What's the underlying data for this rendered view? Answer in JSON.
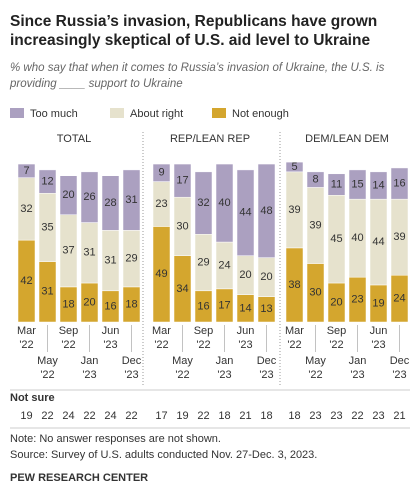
{
  "chart_data": {
    "type": "bar",
    "stacked": true,
    "title": "Since Russia’s invasion, Republicans have grown increasingly skeptical of U.S. aid level to Ukraine",
    "subtitle": "% who say that when it comes to Russia’s invasion of Ukraine, the U.S. is providing ____ support to Ukraine",
    "series": [
      {
        "name": "Too much",
        "color": "#aba0c0"
      },
      {
        "name": "About right",
        "color": "#e6e2cd"
      },
      {
        "name": "Not enough",
        "color": "#d4a62e"
      }
    ],
    "categories": [
      [
        "Mar",
        "'22"
      ],
      [
        "May",
        "'22"
      ],
      [
        "Sep",
        "'22"
      ],
      [
        "Jan",
        "'23"
      ],
      [
        "Jun",
        "'23"
      ],
      [
        "Dec",
        "'23"
      ]
    ],
    "panels": [
      {
        "title": "TOTAL",
        "title_color": "#555555",
        "values": [
          [
            7,
            12,
            20,
            26,
            28,
            31
          ],
          [
            32,
            35,
            37,
            31,
            31,
            29
          ],
          [
            42,
            31,
            18,
            20,
            16,
            18
          ]
        ],
        "not_sure": [
          19,
          22,
          24,
          22,
          24,
          22
        ]
      },
      {
        "title": "REP/LEAN REP",
        "title_color": "#c0392b",
        "values": [
          [
            9,
            17,
            32,
            40,
            44,
            48
          ],
          [
            23,
            30,
            29,
            24,
            20,
            20
          ],
          [
            49,
            34,
            16,
            17,
            14,
            13
          ]
        ],
        "not_sure": [
          17,
          19,
          22,
          18,
          21,
          18
        ]
      },
      {
        "title": "DEM/LEAN DEM",
        "title_color": "#3a6a9e",
        "values": [
          [
            5,
            8,
            11,
            15,
            14,
            16
          ],
          [
            39,
            39,
            45,
            40,
            44,
            39
          ],
          [
            38,
            30,
            20,
            23,
            19,
            24
          ]
        ],
        "not_sure": [
          18,
          23,
          23,
          22,
          23,
          21
        ]
      }
    ],
    "not_sure_label": "Not sure",
    "notes": [
      "Note: No answer responses are not shown.",
      "Source: Survey of U.S. adults conducted Nov. 27-Dec. 3, 2023."
    ],
    "source": "PEW RESEARCH CENTER"
  }
}
